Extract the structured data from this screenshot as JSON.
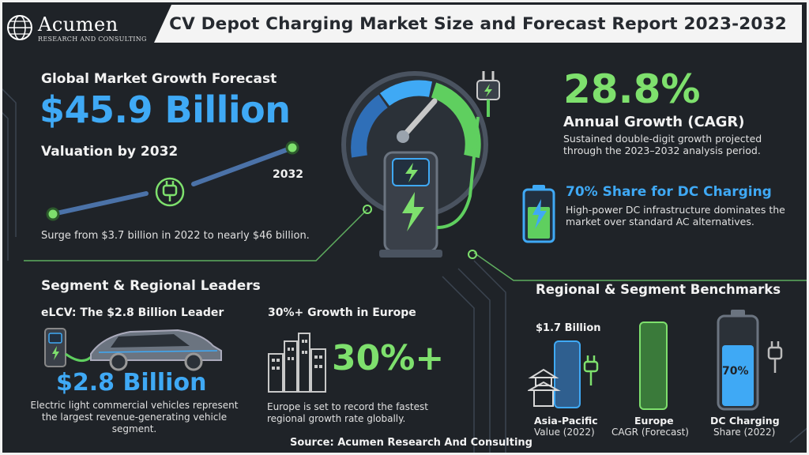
{
  "header": {
    "logo_name": "Acumen",
    "logo_sub": "RESEARCH AND CONSULTING",
    "title": "CV Depot Charging Market Size and Forecast Report 2023-2032"
  },
  "growth": {
    "heading": "Global Market Growth Forecast",
    "value": "$45.9 Billion",
    "sub": "Valuation by 2032",
    "year_label": "2032",
    "note": "Surge from $3.7 billion in 2022 to nearly $46 billion."
  },
  "cagr": {
    "value": "28.8%",
    "label": "Annual Growth (CAGR)",
    "desc": "Sustained double-digit growth projected through the 2023–2032 analysis period."
  },
  "dc_share": {
    "title": "70% Share for DC Charging",
    "desc": "High-power DC infrastructure dominates the market over standard AC alternatives."
  },
  "segment": {
    "heading": "Segment & Regional Leaders",
    "elcv_title": "eLCV: The $2.8 Billion Leader",
    "elcv_value": "$2.8 Billion",
    "elcv_desc": "Electric light commercial vehicles represent the largest revenue-generating vehicle segment.",
    "europe_title": "30%+ Growth in Europe",
    "europe_value": "30%+",
    "europe_desc": "Europe is set to record the fastest regional growth rate globally."
  },
  "benchmarks": {
    "heading": "Regional & Segment Benchmarks",
    "apac_value": "$1.7 Billion",
    "apac_label": "Asia-Pacific",
    "apac_sub": "Value (2022)",
    "europe_label": "Europe",
    "europe_sub": "CAGR (Forecast)",
    "dc_label": "DC Charging",
    "dc_sub": "Share (2022)",
    "dc_value": "70%",
    "dc_fill": 0.7
  },
  "source": "Source: Acumen Research And Consulting",
  "colors": {
    "background": "#1f2328",
    "green": "#7ee06d",
    "blue": "#3fa9f5"
  }
}
